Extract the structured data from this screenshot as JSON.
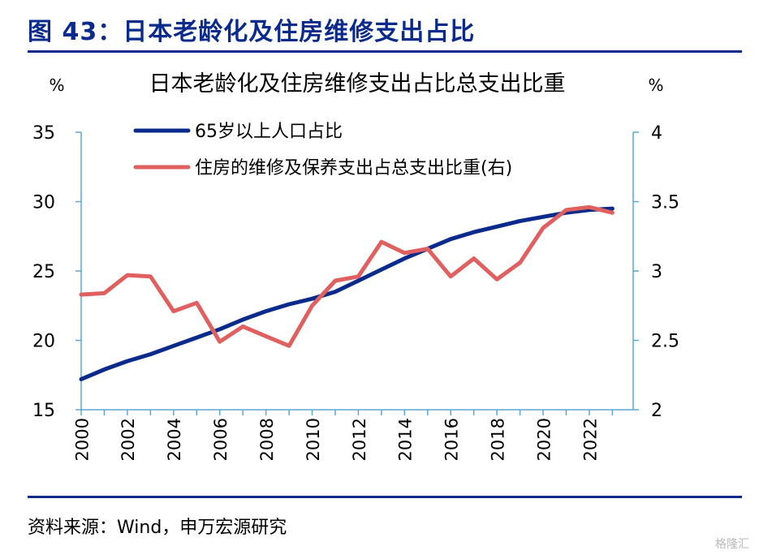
{
  "figure_title": "图 43：日本老龄化及住房维修支出占比",
  "source_note": "资料来源：Wind，申万宏源研究",
  "watermark": "格隆汇",
  "chart_data": {
    "type": "line",
    "title": "日本老龄化及住房维修支出占比总支出比重",
    "left_unit": "%",
    "right_unit": "%",
    "x": [
      2000,
      2001,
      2002,
      2003,
      2004,
      2005,
      2006,
      2007,
      2008,
      2009,
      2010,
      2011,
      2012,
      2013,
      2014,
      2015,
      2016,
      2017,
      2018,
      2019,
      2020,
      2021,
      2022,
      2023
    ],
    "xticks": [
      "2000",
      "2002",
      "2004",
      "2006",
      "2008",
      "2010",
      "2012",
      "2014",
      "2016",
      "2018",
      "2020",
      "2022"
    ],
    "ylim_left": [
      15,
      35
    ],
    "yticks_left": [
      "15",
      "20",
      "25",
      "30",
      "35"
    ],
    "ylim_right": [
      2,
      4
    ],
    "yticks_right": [
      "2",
      "2.5",
      "3",
      "3.5",
      "4"
    ],
    "grid": false,
    "legend_position": "top-left",
    "series": [
      {
        "name": "65岁以上人口占比",
        "axis": "left",
        "color": "#0a2a8c",
        "values": [
          17.2,
          17.9,
          18.5,
          19.0,
          19.6,
          20.2,
          20.8,
          21.5,
          22.1,
          22.6,
          23.0,
          23.5,
          24.3,
          25.1,
          25.9,
          26.6,
          27.3,
          27.8,
          28.2,
          28.6,
          28.9,
          29.2,
          29.4,
          29.5
        ]
      },
      {
        "name": "住房的维修及保养支出占总支出比重(右)",
        "axis": "right",
        "color": "#e06060",
        "values": [
          2.83,
          2.84,
          2.97,
          2.96,
          2.71,
          2.77,
          2.49,
          2.6,
          2.53,
          2.46,
          2.75,
          2.93,
          2.96,
          3.21,
          3.13,
          3.16,
          2.96,
          3.09,
          2.94,
          3.06,
          3.31,
          3.44,
          3.46,
          3.42
        ]
      }
    ]
  }
}
